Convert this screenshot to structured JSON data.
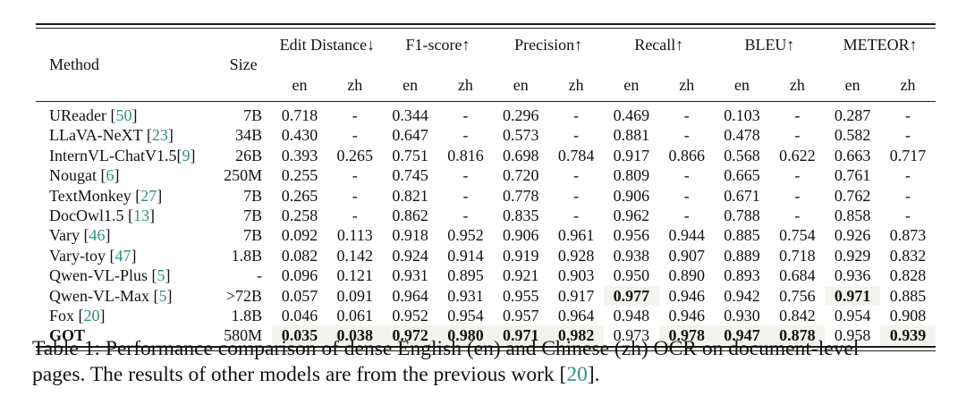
{
  "accent": {
    "cite_color": "#2e9184",
    "highlight_bg": "#f4f4ee"
  },
  "table": {
    "col_method": "Method",
    "col_size": "Size",
    "sub_en": "en",
    "sub_zh": "zh",
    "groups": [
      {
        "label": "Edit Distance↓"
      },
      {
        "label": "F1-score↑"
      },
      {
        "label": "Precision↑"
      },
      {
        "label": "Recall↑"
      },
      {
        "label": "BLEU↑"
      },
      {
        "label": "METEOR↑"
      }
    ],
    "rows": [
      {
        "label": "UReader ",
        "cite": "50",
        "size": "7B",
        "method_bold": false,
        "values": [
          "0.718",
          "-",
          "0.344",
          "-",
          "0.296",
          "-",
          "0.469",
          "-",
          "0.103",
          "-",
          "0.287",
          "-"
        ],
        "bold": []
      },
      {
        "label": "LLaVA-NeXT ",
        "cite": "23",
        "size": "34B",
        "method_bold": false,
        "values": [
          "0.430",
          "-",
          "0.647",
          "-",
          "0.573",
          "-",
          "0.881",
          "-",
          "0.478",
          "-",
          "0.582",
          "-"
        ],
        "bold": []
      },
      {
        "label": "InternVL-ChatV1.5",
        "cite": "9",
        "size": "26B",
        "method_bold": false,
        "values": [
          "0.393",
          "0.265",
          "0.751",
          "0.816",
          "0.698",
          "0.784",
          "0.917",
          "0.866",
          "0.568",
          "0.622",
          "0.663",
          "0.717"
        ],
        "bold": []
      },
      {
        "label": "Nougat ",
        "cite": "6",
        "size": "250M",
        "method_bold": false,
        "values": [
          "0.255",
          "-",
          "0.745",
          "-",
          "0.720",
          "-",
          "0.809",
          "-",
          "0.665",
          "-",
          "0.761",
          "-"
        ],
        "bold": []
      },
      {
        "label": "TextMonkey ",
        "cite": "27",
        "size": "7B",
        "method_bold": false,
        "values": [
          "0.265",
          "-",
          "0.821",
          "-",
          "0.778",
          "-",
          "0.906",
          "-",
          "0.671",
          "-",
          "0.762",
          "-"
        ],
        "bold": []
      },
      {
        "label": "DocOwl1.5 ",
        "cite": "13",
        "size": "7B",
        "method_bold": false,
        "values": [
          "0.258",
          "-",
          "0.862",
          "-",
          "0.835",
          "-",
          "0.962",
          "-",
          "0.788",
          "-",
          "0.858",
          "-"
        ],
        "bold": []
      },
      {
        "label": "Vary ",
        "cite": "46",
        "size": "7B",
        "method_bold": false,
        "values": [
          "0.092",
          "0.113",
          "0.918",
          "0.952",
          "0.906",
          "0.961",
          "0.956",
          "0.944",
          "0.885",
          "0.754",
          "0.926",
          "0.873"
        ],
        "bold": []
      },
      {
        "label": "Vary-toy ",
        "cite": "47",
        "size": "1.8B",
        "method_bold": false,
        "values": [
          "0.082",
          "0.142",
          "0.924",
          "0.914",
          "0.919",
          "0.928",
          "0.938",
          "0.907",
          "0.889",
          "0.718",
          "0.929",
          "0.832"
        ],
        "bold": []
      },
      {
        "label": "Qwen-VL-Plus ",
        "cite": "5",
        "size": "-",
        "method_bold": false,
        "values": [
          "0.096",
          "0.121",
          "0.931",
          "0.895",
          "0.921",
          "0.903",
          "0.950",
          "0.890",
          "0.893",
          "0.684",
          "0.936",
          "0.828"
        ],
        "bold": []
      },
      {
        "label": "Qwen-VL-Max ",
        "cite": "5",
        "size": ">72B",
        "method_bold": false,
        "values": [
          "0.057",
          "0.091",
          "0.964",
          "0.931",
          "0.955",
          "0.917",
          "0.977",
          "0.946",
          "0.942",
          "0.756",
          "0.971",
          "0.885"
        ],
        "bold": [
          6,
          10
        ]
      },
      {
        "label": "Fox ",
        "cite": "20",
        "size": "1.8B",
        "method_bold": false,
        "values": [
          "0.046",
          "0.061",
          "0.952",
          "0.954",
          "0.957",
          "0.964",
          "0.948",
          "0.946",
          "0.930",
          "0.842",
          "0.954",
          "0.908"
        ],
        "bold": []
      },
      {
        "label": "GOT",
        "cite": null,
        "size": "580M",
        "method_bold": true,
        "values": [
          "0.035",
          "0.038",
          "0.972",
          "0.980",
          "0.971",
          "0.982",
          "0.973",
          "0.978",
          "0.947",
          "0.878",
          "0.958",
          "0.939"
        ],
        "bold": [
          0,
          1,
          2,
          3,
          4,
          5,
          7,
          8,
          9,
          11
        ]
      }
    ]
  },
  "caption": {
    "line1": "Table 1: Performance comparison of dense English (en) and Chinese (zh) OCR on document-level",
    "line2_prefix": "pages. The results of other models are from the previous work [",
    "cite": "20",
    "line2_suffix": "]."
  }
}
